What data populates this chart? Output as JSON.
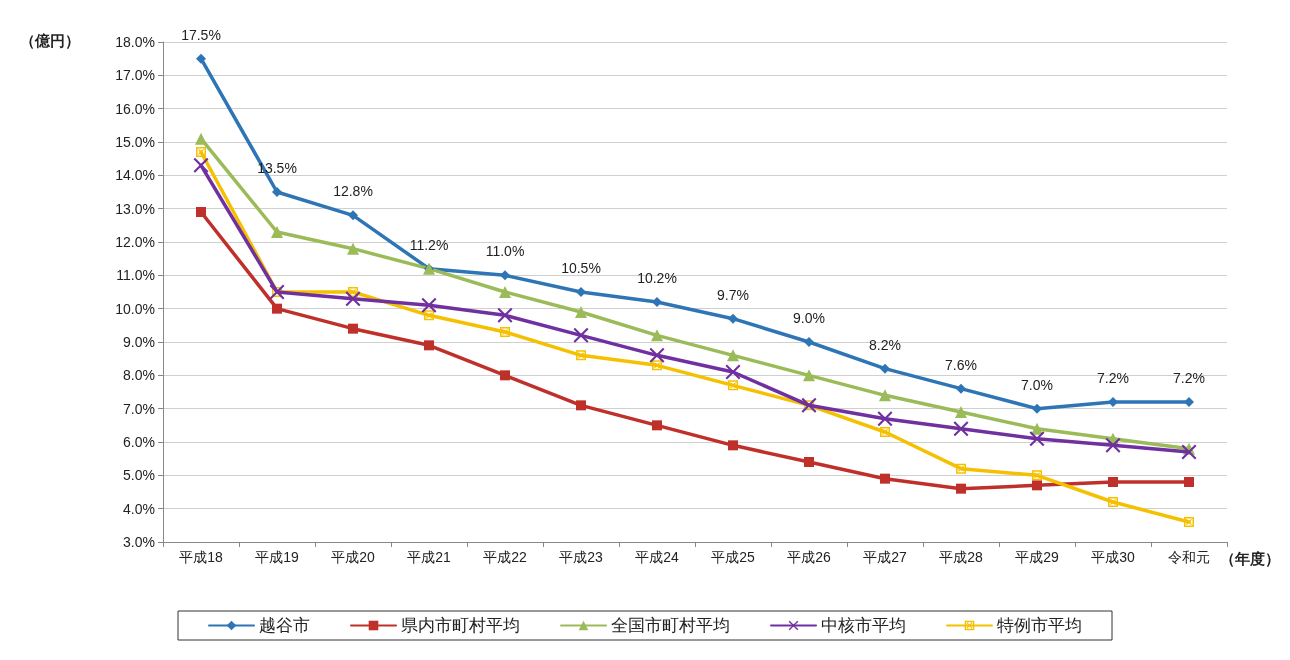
{
  "chart_data": {
    "type": "line",
    "ylabel": "（億円）",
    "xlabel": "（年度）",
    "categories": [
      "平成18",
      "平成19",
      "平成20",
      "平成21",
      "平成22",
      "平成23",
      "平成24",
      "平成25",
      "平成26",
      "平成27",
      "平成28",
      "平成29",
      "平成30",
      "令和元"
    ],
    "ylim": [
      3,
      18
    ],
    "yticks": [
      {
        "value": 3,
        "label": "3.0%"
      },
      {
        "value": 4,
        "label": "4.0%"
      },
      {
        "value": 5,
        "label": "5.0%"
      },
      {
        "value": 6,
        "label": "6.0%"
      },
      {
        "value": 7,
        "label": "7.0%"
      },
      {
        "value": 8,
        "label": "8.0%"
      },
      {
        "value": 9,
        "label": "9.0%"
      },
      {
        "value": 10,
        "label": "10.0%"
      },
      {
        "value": 11,
        "label": "11.0%"
      },
      {
        "value": 12,
        "label": "12.0%"
      },
      {
        "value": 13,
        "label": "13.0%"
      },
      {
        "value": 14,
        "label": "14.0%"
      },
      {
        "value": 15,
        "label": "15.0%"
      },
      {
        "value": 16,
        "label": "16.0%"
      },
      {
        "value": 17,
        "label": "17.0%"
      },
      {
        "value": 18,
        "label": "18.0%"
      }
    ],
    "series": [
      {
        "name": "越谷市",
        "color": "#2e75b6",
        "marker": "diamond",
        "values": [
          17.5,
          13.5,
          12.8,
          11.2,
          11.0,
          10.5,
          10.2,
          9.7,
          9.0,
          8.2,
          7.6,
          7.0,
          7.2,
          7.2
        ],
        "value_labels": [
          "17.5%",
          "13.5%",
          "12.8%",
          "11.2%",
          "11.0%",
          "10.5%",
          "10.2%",
          "9.7%",
          "9.0%",
          "8.2%",
          "7.6%",
          "7.0%",
          "7.2%",
          "7.2%"
        ]
      },
      {
        "name": "県内市町村平均",
        "color": "#c0302a",
        "marker": "square",
        "values": [
          12.9,
          10.0,
          9.4,
          8.9,
          8.0,
          7.1,
          6.5,
          5.9,
          5.4,
          4.9,
          4.6,
          4.7,
          4.8,
          4.8
        ]
      },
      {
        "name": "全国市町村平均",
        "color": "#9bbb59",
        "marker": "triangle",
        "values": [
          15.1,
          12.3,
          11.8,
          11.2,
          10.5,
          9.9,
          9.2,
          8.6,
          8.0,
          7.4,
          6.9,
          6.4,
          6.1,
          5.8
        ]
      },
      {
        "name": "中核市平均",
        "color": "#7030a0",
        "marker": "cross",
        "values": [
          14.3,
          10.5,
          10.3,
          10.1,
          9.8,
          9.2,
          8.6,
          8.1,
          7.1,
          6.7,
          6.4,
          6.1,
          5.9,
          5.7
        ]
      },
      {
        "name": "特例市平均",
        "color": "#f5c000",
        "marker": "star",
        "values": [
          14.7,
          10.5,
          10.5,
          9.8,
          9.3,
          8.6,
          8.3,
          7.7,
          7.1,
          6.3,
          5.2,
          5.0,
          4.2,
          3.6
        ]
      }
    ],
    "grid": "y",
    "legend": "bottom",
    "line_style": "solid"
  }
}
